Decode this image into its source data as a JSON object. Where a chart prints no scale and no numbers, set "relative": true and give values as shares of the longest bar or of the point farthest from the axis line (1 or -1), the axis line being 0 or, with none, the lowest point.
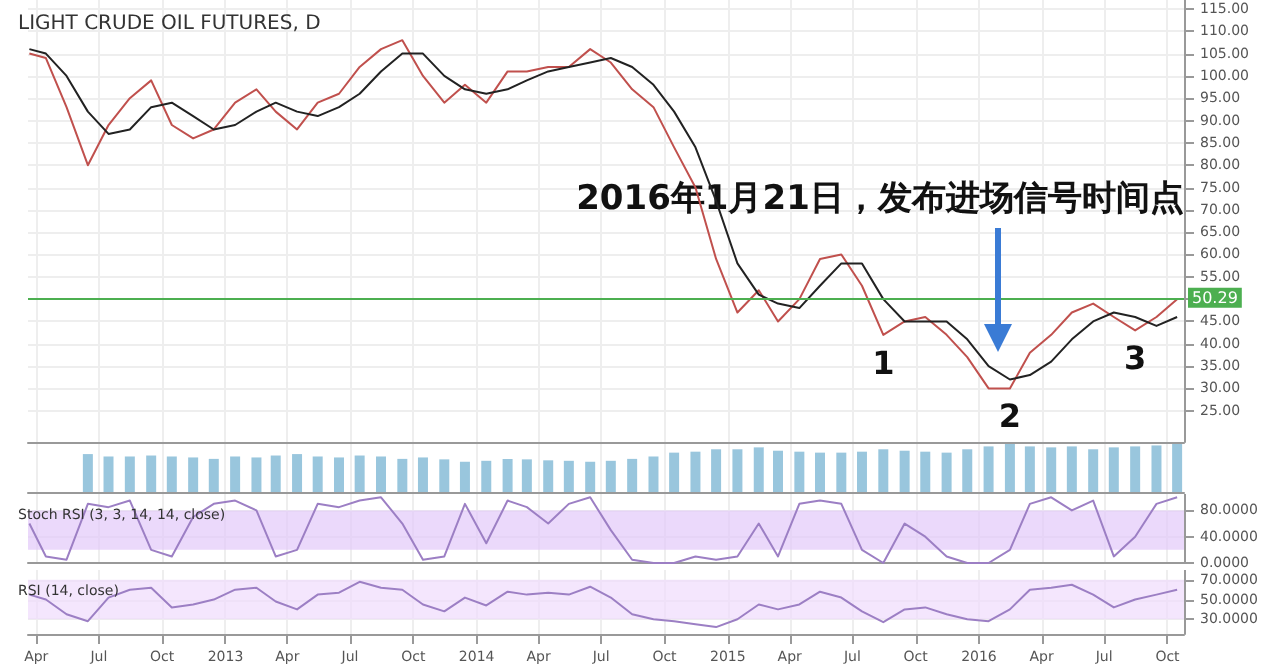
{
  "chart_data": [
    {
      "type": "line",
      "title": "LIGHT CRUDE OIL FUTURES, D",
      "marker": "none",
      "grid": true,
      "tick_labels": "y",
      "x": [
        "2012-03-22",
        "2012-04-15",
        "2012-05-15",
        "2012-06-15",
        "2012-07-15",
        "2012-08-15",
        "2012-09-15",
        "2012-10-15",
        "2012-11-15",
        "2012-12-15",
        "2013-01-15",
        "2013-02-15",
        "2013-03-15",
        "2013-04-15",
        "2013-05-15",
        "2013-06-15",
        "2013-07-15",
        "2013-08-15",
        "2013-09-15",
        "2013-10-15",
        "2013-11-15",
        "2013-12-15",
        "2014-01-15",
        "2014-02-15",
        "2014-03-15",
        "2014-04-15",
        "2014-05-15",
        "2014-06-15",
        "2014-07-15",
        "2014-08-15",
        "2014-09-15",
        "2014-10-15",
        "2014-11-15",
        "2014-12-15",
        "2015-01-15",
        "2015-02-15",
        "2015-03-15",
        "2015-04-15",
        "2015-05-15",
        "2015-06-15",
        "2015-07-15",
        "2015-08-15",
        "2015-09-15",
        "2015-10-15",
        "2015-11-15",
        "2015-12-15",
        "2016-01-15",
        "2016-02-15",
        "2016-03-15",
        "2016-04-15",
        "2016-05-15",
        "2016-06-15",
        "2016-07-15",
        "2016-08-15",
        "2016-09-15",
        "2016-10-15"
      ],
      "series": [
        {
          "color": "#c0504d",
          "values": [
            105,
            104,
            93,
            80,
            89,
            95,
            99,
            89,
            86,
            88,
            94,
            97,
            92,
            88,
            94,
            96,
            102,
            106,
            108,
            100,
            94,
            98,
            94,
            101,
            101,
            102,
            102,
            106,
            103,
            97,
            93,
            84,
            75,
            59,
            47,
            52,
            45,
            50,
            59,
            60,
            53,
            42,
            45,
            46,
            42,
            37,
            30,
            30,
            38,
            42,
            47,
            49,
            46,
            43,
            46,
            50
          ]
        },
        {
          "color": "#222222",
          "values": [
            106,
            105,
            100,
            92,
            87,
            88,
            93,
            94,
            91,
            88,
            89,
            92,
            94,
            92,
            91,
            93,
            96,
            101,
            105,
            105,
            100,
            97,
            96,
            97,
            99,
            101,
            102,
            103,
            104,
            102,
            98,
            92,
            84,
            72,
            58,
            51,
            49,
            48,
            53,
            58,
            58,
            50,
            45,
            45,
            45,
            41,
            35,
            32,
            33,
            36,
            41,
            45,
            47,
            46,
            44,
            46
          ]
        }
      ],
      "xlim": [
        "2012-03-20",
        "2016-10-25"
      ],
      "xticks": [
        {
          "value": "2012-04-01",
          "label": null
        },
        {
          "value": "2012-07-01",
          "label": null
        },
        {
          "value": "2012-10-01",
          "label": null
        },
        {
          "value": "2013-01-01",
          "label": null
        },
        {
          "value": "2013-04-01",
          "label": null
        },
        {
          "value": "2013-07-01",
          "label": null
        },
        {
          "value": "2013-10-01",
          "label": null
        },
        {
          "value": "2014-01-01",
          "label": null
        },
        {
          "value": "2014-04-01",
          "label": null
        },
        {
          "value": "2014-07-01",
          "label": null
        },
        {
          "value": "2014-10-01",
          "label": null
        },
        {
          "value": "2015-01-01",
          "label": null
        },
        {
          "value": "2015-04-01",
          "label": null
        },
        {
          "value": "2015-07-01",
          "label": null
        },
        {
          "value": "2015-10-01",
          "label": null
        },
        {
          "value": "2016-01-01",
          "label": null
        },
        {
          "value": "2016-04-01",
          "label": null
        },
        {
          "value": "2016-07-01",
          "label": null
        },
        {
          "value": "2016-10-01",
          "label": null
        }
      ],
      "ylim": [
        18,
        117
      ],
      "yticks": [
        {
          "value": 25,
          "label": "25.00"
        },
        {
          "value": 30,
          "label": "30.00"
        },
        {
          "value": 35,
          "label": "35.00"
        },
        {
          "value": 40,
          "label": "40.00"
        },
        {
          "value": 45,
          "label": "45.00"
        },
        {
          "value": 50,
          "label": null
        },
        {
          "value": 55,
          "label": "55.00"
        },
        {
          "value": 60,
          "label": "60.00"
        },
        {
          "value": 65,
          "label": "65.00"
        },
        {
          "value": 70,
          "label": "70.00"
        },
        {
          "value": 75,
          "label": "75.00"
        },
        {
          "value": 80,
          "label": "80.00"
        },
        {
          "value": 85,
          "label": "85.00"
        },
        {
          "value": 90,
          "label": "90.00"
        },
        {
          "value": 95,
          "label": "95.00"
        },
        {
          "value": 100,
          "label": "100.00"
        },
        {
          "value": 105,
          "label": "105.00"
        },
        {
          "value": 110,
          "label": "110.00"
        },
        {
          "value": 115,
          "label": "115.00"
        }
      ],
      "ref_lines": [
        {
          "axis": "y",
          "value": 50.29,
          "label": "50.29",
          "color": "#4caf50"
        }
      ],
      "annotations": [
        "2016年1月21日，发布进场信号时间点",
        {
          "text": "1",
          "x": "2015-08-15",
          "y": 42
        },
        {
          "text": "2",
          "x": "2016-02-15",
          "y": 30
        },
        {
          "text": "3",
          "x": "2016-08-15",
          "y": 43
        }
      ]
    },
    {
      "type": "bar",
      "relative": true,
      "color": "#7fb8d4",
      "grid": true,
      "tick_labels": false,
      "x": [
        "2012-06-15",
        "2012-07-15",
        "2012-08-15",
        "2012-09-15",
        "2012-10-15",
        "2012-11-15",
        "2012-12-15",
        "2013-01-15",
        "2013-02-15",
        "2013-03-15",
        "2013-04-15",
        "2013-05-15",
        "2013-06-15",
        "2013-07-15",
        "2013-08-15",
        "2013-09-15",
        "2013-10-15",
        "2013-11-15",
        "2013-12-15",
        "2014-01-15",
        "2014-02-15",
        "2014-03-15",
        "2014-04-15",
        "2014-05-15",
        "2014-06-15",
        "2014-07-15",
        "2014-08-15",
        "2014-09-15",
        "2014-10-15",
        "2014-11-15",
        "2014-12-15",
        "2015-01-15",
        "2015-02-15",
        "2015-03-15",
        "2015-04-15",
        "2015-05-15",
        "2015-06-15",
        "2015-07-15",
        "2015-08-15",
        "2015-09-15",
        "2015-10-15",
        "2015-11-15",
        "2015-12-15",
        "2016-01-15",
        "2016-02-15",
        "2016-03-15",
        "2016-04-15",
        "2016-05-15",
        "2016-06-15",
        "2016-07-15",
        "2016-08-15",
        "2016-09-15",
        "2016-10-15"
      ],
      "values": [
        0.79,
        0.74,
        0.74,
        0.76,
        0.74,
        0.72,
        0.69,
        0.74,
        0.72,
        0.76,
        0.79,
        0.74,
        0.72,
        0.76,
        0.74,
        0.69,
        0.72,
        0.68,
        0.63,
        0.65,
        0.69,
        0.68,
        0.66,
        0.65,
        0.63,
        0.65,
        0.69,
        0.74,
        0.82,
        0.84,
        0.89,
        0.89,
        0.93,
        0.86,
        0.84,
        0.82,
        0.82,
        0.84,
        0.89,
        0.86,
        0.84,
        0.82,
        0.89,
        0.95,
        1,
        0.95,
        0.93,
        0.95,
        0.89,
        0.93,
        0.95,
        0.97,
        1
      ],
      "xlim": [
        "2012-03-20",
        "2016-10-25"
      ],
      "xticks": [
        {
          "value": "2012-04-01",
          "label": null
        },
        {
          "value": "2012-07-01",
          "label": null
        },
        {
          "value": "2012-10-01",
          "label": null
        },
        {
          "value": "2013-01-01",
          "label": null
        },
        {
          "value": "2013-04-01",
          "label": null
        },
        {
          "value": "2013-07-01",
          "label": null
        },
        {
          "value": "2013-10-01",
          "label": null
        },
        {
          "value": "2014-01-01",
          "label": null
        },
        {
          "value": "2014-04-01",
          "label": null
        },
        {
          "value": "2014-07-01",
          "label": null
        },
        {
          "value": "2014-10-01",
          "label": null
        },
        {
          "value": "2015-01-01",
          "label": null
        },
        {
          "value": "2015-04-01",
          "label": null
        },
        {
          "value": "2015-07-01",
          "label": null
        },
        {
          "value": "2015-10-01",
          "label": null
        },
        {
          "value": "2016-01-01",
          "label": null
        },
        {
          "value": "2016-04-01",
          "label": null
        },
        {
          "value": "2016-07-01",
          "label": null
        },
        {
          "value": "2016-10-01",
          "label": null
        }
      ]
    },
    {
      "type": "line",
      "title": "Stoch RSI (3, 3, 14, 14, close)",
      "marker": "none",
      "grid": true,
      "tick_labels": "y",
      "color": "#9c7fc4",
      "x": [
        "2012-03-22",
        "2012-04-15",
        "2012-05-15",
        "2012-06-15",
        "2012-07-15",
        "2012-08-15",
        "2012-09-15",
        "2012-10-15",
        "2012-11-15",
        "2012-12-15",
        "2013-01-15",
        "2013-02-15",
        "2013-03-15",
        "2013-04-15",
        "2013-05-15",
        "2013-06-15",
        "2013-07-15",
        "2013-08-15",
        "2013-09-15",
        "2013-10-15",
        "2013-11-15",
        "2013-12-15",
        "2014-01-15",
        "2014-02-15",
        "2014-03-15",
        "2014-04-15",
        "2014-05-15",
        "2014-06-15",
        "2014-07-15",
        "2014-08-15",
        "2014-09-15",
        "2014-10-15",
        "2014-11-15",
        "2014-12-15",
        "2015-01-15",
        "2015-02-15",
        "2015-03-15",
        "2015-04-15",
        "2015-05-15",
        "2015-06-15",
        "2015-07-15",
        "2015-08-15",
        "2015-09-15",
        "2015-10-15",
        "2015-11-15",
        "2015-12-15",
        "2016-01-15",
        "2016-02-15",
        "2016-03-15",
        "2016-04-15",
        "2016-05-15",
        "2016-06-15",
        "2016-07-15",
        "2016-08-15",
        "2016-09-15",
        "2016-10-15"
      ],
      "values": [
        60,
        10,
        5,
        90,
        85,
        95,
        20,
        10,
        70,
        90,
        95,
        80,
        10,
        20,
        90,
        85,
        95,
        100,
        60,
        5,
        10,
        90,
        30,
        95,
        85,
        60,
        90,
        100,
        50,
        5,
        0,
        0,
        10,
        5,
        10,
        60,
        10,
        90,
        95,
        90,
        20,
        0,
        60,
        40,
        10,
        0,
        0,
        20,
        90,
        100,
        80,
        95,
        10,
        40,
        90,
        100
      ],
      "xlim": [
        "2012-03-20",
        "2016-10-25"
      ],
      "xticks": [
        {
          "value": "2012-04-01",
          "label": null
        },
        {
          "value": "2012-07-01",
          "label": null
        },
        {
          "value": "2012-10-01",
          "label": null
        },
        {
          "value": "2013-01-01",
          "label": null
        },
        {
          "value": "2013-04-01",
          "label": null
        },
        {
          "value": "2013-07-01",
          "label": null
        },
        {
          "value": "2013-10-01",
          "label": null
        },
        {
          "value": "2014-01-01",
          "label": null
        },
        {
          "value": "2014-04-01",
          "label": null
        },
        {
          "value": "2014-07-01",
          "label": null
        },
        {
          "value": "2014-10-01",
          "label": null
        },
        {
          "value": "2015-01-01",
          "label": null
        },
        {
          "value": "2015-04-01",
          "label": null
        },
        {
          "value": "2015-07-01",
          "label": null
        },
        {
          "value": "2015-10-01",
          "label": null
        },
        {
          "value": "2016-01-01",
          "label": null
        },
        {
          "value": "2016-04-01",
          "label": null
        },
        {
          "value": "2016-07-01",
          "label": null
        },
        {
          "value": "2016-10-01",
          "label": null
        }
      ],
      "ylim": [
        0,
        105
      ],
      "yticks": [
        {
          "value": 0,
          "label": "0.0000"
        },
        {
          "value": 40,
          "label": "40.0000"
        },
        {
          "value": 80,
          "label": "80.0000"
        }
      ],
      "bands": [
        {
          "axis": "y",
          "from": 20,
          "to": 80,
          "color": "#e3c9fa"
        }
      ]
    },
    {
      "type": "line",
      "title": "RSI (14, close)",
      "marker": "none",
      "grid": true,
      "color": "#9c7fc4",
      "x": [
        "2012-03-22",
        "2012-04-15",
        "2012-05-15",
        "2012-06-15",
        "2012-07-15",
        "2012-08-15",
        "2012-09-15",
        "2012-10-15",
        "2012-11-15",
        "2012-12-15",
        "2013-01-15",
        "2013-02-15",
        "2013-03-15",
        "2013-04-15",
        "2013-05-15",
        "2013-06-15",
        "2013-07-15",
        "2013-08-15",
        "2013-09-15",
        "2013-10-15",
        "2013-11-15",
        "2013-12-15",
        "2014-01-15",
        "2014-02-15",
        "2014-03-15",
        "2014-04-15",
        "2014-05-15",
        "2014-06-15",
        "2014-07-15",
        "2014-08-15",
        "2014-09-15",
        "2014-10-15",
        "2014-11-15",
        "2014-12-15",
        "2015-01-15",
        "2015-02-15",
        "2015-03-15",
        "2015-04-15",
        "2015-05-15",
        "2015-06-15",
        "2015-07-15",
        "2015-08-15",
        "2015-09-15",
        "2015-10-15",
        "2015-11-15",
        "2015-12-15",
        "2016-01-15",
        "2016-02-15",
        "2016-03-15",
        "2016-04-15",
        "2016-05-15",
        "2016-06-15",
        "2016-07-15",
        "2016-08-15",
        "2016-09-15",
        "2016-10-15"
      ],
      "values": [
        55,
        50,
        35,
        28,
        52,
        60,
        62,
        42,
        45,
        50,
        60,
        62,
        48,
        40,
        55,
        57,
        68,
        62,
        60,
        45,
        38,
        52,
        44,
        58,
        55,
        57,
        55,
        63,
        52,
        35,
        30,
        28,
        25,
        22,
        30,
        45,
        40,
        45,
        58,
        52,
        38,
        27,
        40,
        42,
        35,
        30,
        28,
        40,
        60,
        62,
        65,
        55,
        42,
        50,
        55,
        60
      ],
      "xlim": [
        "2012-03-20",
        "2016-10-25"
      ],
      "xticks": [
        {
          "value": "2012-04-01",
          "label": "Apr"
        },
        {
          "value": "2012-07-01",
          "label": "Jul"
        },
        {
          "value": "2012-10-01",
          "label": "Oct"
        },
        {
          "value": "2013-01-01",
          "label": "2013"
        },
        {
          "value": "2013-04-01",
          "label": "Apr"
        },
        {
          "value": "2013-07-01",
          "label": "Jul"
        },
        {
          "value": "2013-10-01",
          "label": "Oct"
        },
        {
          "value": "2014-01-01",
          "label": "2014"
        },
        {
          "value": "2014-04-01",
          "label": "Apr"
        },
        {
          "value": "2014-07-01",
          "label": "Jul"
        },
        {
          "value": "2014-10-01",
          "label": "Oct"
        },
        {
          "value": "2015-01-01",
          "label": "2015"
        },
        {
          "value": "2015-04-01",
          "label": "Apr"
        },
        {
          "value": "2015-07-01",
          "label": "Jul"
        },
        {
          "value": "2015-10-01",
          "label": "Oct"
        },
        {
          "value": "2016-01-01",
          "label": "2016"
        },
        {
          "value": "2016-04-01",
          "label": "Apr"
        },
        {
          "value": "2016-07-01",
          "label": "Jul"
        },
        {
          "value": "2016-10-01",
          "label": "Oct"
        }
      ],
      "ylim": [
        15,
        80
      ],
      "yticks": [
        {
          "value": 30,
          "label": "30.0000"
        },
        {
          "value": 50,
          "label": "50.0000"
        },
        {
          "value": 70,
          "label": "70.0000"
        }
      ],
      "bands": [
        {
          "axis": "y",
          "from": 30,
          "to": 70,
          "color": "#efdcfc"
        }
      ]
    }
  ]
}
